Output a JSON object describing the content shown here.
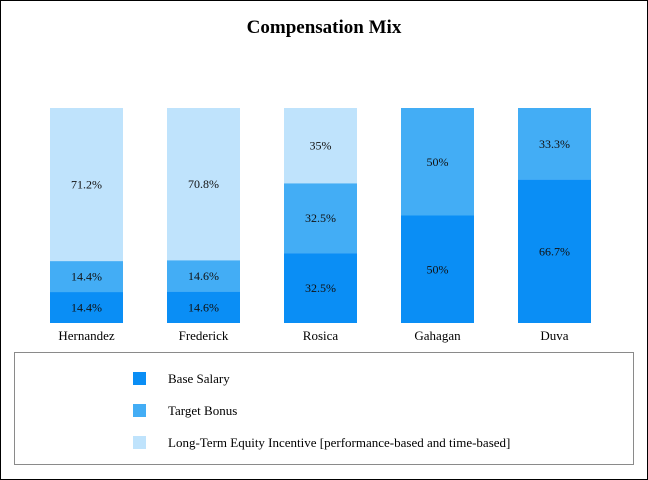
{
  "chart_data": {
    "type": "bar",
    "stacked": true,
    "normalized_percent": true,
    "title": "Compensation Mix",
    "categories": [
      "Hernandez",
      "Frederick",
      "Rosica",
      "Gahagan",
      "Duva"
    ],
    "series": [
      {
        "name": "Base Salary",
        "color": "#0a8ef5",
        "values": [
          14.4,
          14.6,
          32.5,
          50,
          66.7
        ],
        "labels": [
          "14.4%",
          "14.6%",
          "32.5%",
          "50%",
          "66.7%"
        ]
      },
      {
        "name": "Target Bonus",
        "color": "#43adf5",
        "values": [
          14.4,
          14.6,
          32.5,
          50,
          33.3
        ],
        "labels": [
          "14.4%",
          "14.6%",
          "32.5%",
          "50%",
          "33.3%"
        ]
      },
      {
        "name": "Long-Term Equity Incentive [performance-based and time-based]",
        "color": "#bfe3fc",
        "values": [
          71.2,
          70.8,
          35,
          0,
          0
        ],
        "labels": [
          "71.2%",
          "70.8%",
          "35%",
          "",
          ""
        ]
      }
    ],
    "ylim": [
      0,
      100
    ],
    "grid": false,
    "legend_position": "bottom"
  }
}
